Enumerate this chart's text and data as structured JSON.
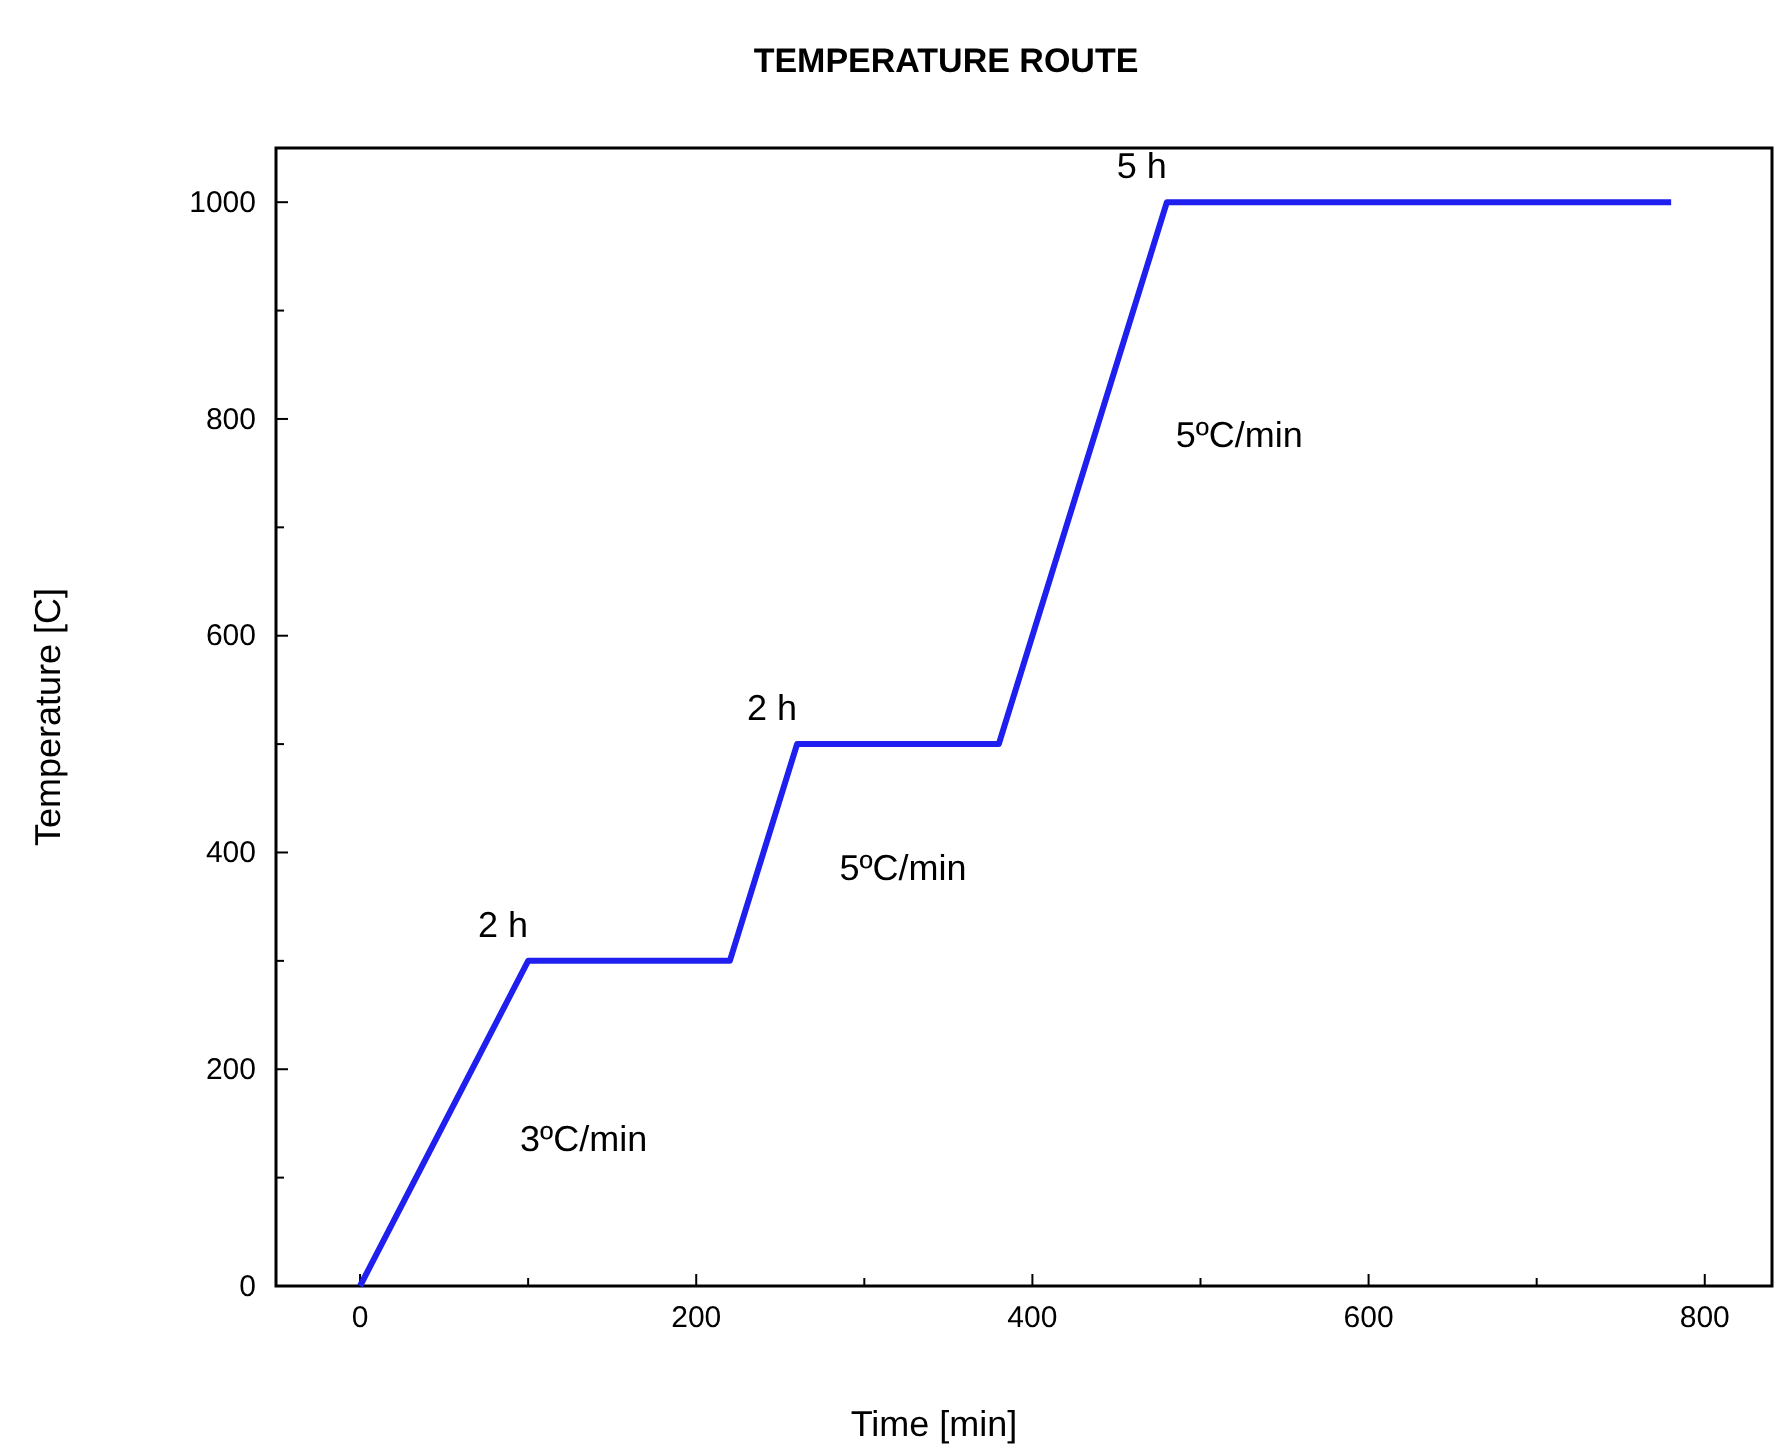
{
  "chart_data": {
    "type": "line",
    "title": "TEMPERATURE ROUTE",
    "xlabel": "Time [min]",
    "ylabel": "Temperature [C]",
    "x": [
      0,
      100,
      220,
      260,
      380,
      480,
      780
    ],
    "series": [
      {
        "color": "#1f1ff0",
        "values": [
          0,
          300,
          300,
          500,
          500,
          1000,
          1000
        ]
      }
    ],
    "xlim": [
      -50,
      840
    ],
    "ylim": [
      0,
      1050
    ],
    "xticks": [
      0,
      {
        "value": 100,
        "label": null
      },
      200,
      {
        "value": 300,
        "label": null
      },
      400,
      {
        "value": 500,
        "label": null
      },
      600,
      {
        "value": 700,
        "label": null
      },
      800
    ],
    "yticks": [
      0,
      {
        "value": 100,
        "label": null
      },
      200,
      {
        "value": 300,
        "label": null
      },
      400,
      {
        "value": 500,
        "label": null
      },
      600,
      {
        "value": 700,
        "label": null
      },
      800,
      {
        "value": 900,
        "label": null
      },
      1000
    ],
    "grid": false,
    "marker": "none",
    "line_style": "solid",
    "annotations": [
      {
        "text": "2 h",
        "x": 100,
        "y": 300
      },
      {
        "text": "3ºC/min",
        "x": 50,
        "y": 150
      },
      {
        "text": "2 h",
        "x": 260,
        "y": 500
      },
      {
        "text": "5ºC/min",
        "x": 240,
        "y": 400
      },
      {
        "text": "5 h",
        "x": 480,
        "y": 1000
      },
      {
        "text": "5ºC/min",
        "x": 440,
        "y": 800
      }
    ]
  }
}
